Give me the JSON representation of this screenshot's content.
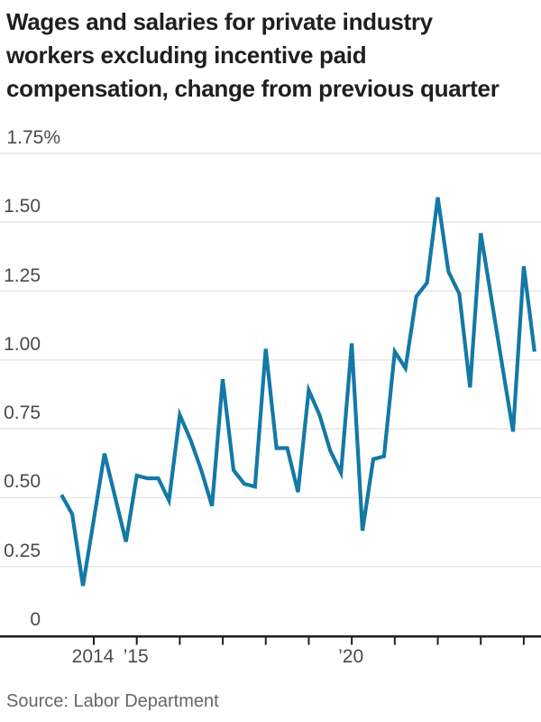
{
  "title_lines": [
    "Wages and salaries for private industry",
    "workers excluding incentive paid",
    "compensation, change from previous quarter"
  ],
  "source": "Source: Labor Department",
  "chart_data": {
    "type": "line",
    "title": "Wages and salaries for private industry workers excluding incentive paid compensation, change from previous quarter",
    "ylabel": "percent change from previous quarter",
    "ylim": [
      0,
      1.75
    ],
    "grid": "horizontal",
    "legend_position": "none",
    "line_color": "#1379A6",
    "axis_color": "#1f1f1f",
    "gridline_color": "#e4e4e4",
    "frequency": "quarterly",
    "start_quarter": "2013 Q2",
    "end_quarter": "2024 Q2",
    "values": [
      0.51,
      0.44,
      0.18,
      0.42,
      0.66,
      0.5,
      0.34,
      0.58,
      0.57,
      0.57,
      0.49,
      0.8,
      0.71,
      0.6,
      0.47,
      0.93,
      0.6,
      0.55,
      0.54,
      1.04,
      0.68,
      0.68,
      0.52,
      0.89,
      0.8,
      0.67,
      0.59,
      1.06,
      0.38,
      0.64,
      0.65,
      1.03,
      0.97,
      1.23,
      1.28,
      1.59,
      1.32,
      1.24,
      0.9,
      1.46,
      1.22,
      0.98,
      0.74,
      1.34,
      1.03
    ],
    "y_ticks": [
      {
        "label": "1.75%",
        "value": 1.75
      },
      {
        "label": "1.50",
        "value": 1.5
      },
      {
        "label": "1.25",
        "value": 1.25
      },
      {
        "label": "1.00",
        "value": 1.0
      },
      {
        "label": "0.75",
        "value": 0.75
      },
      {
        "label": "0.50",
        "value": 0.5
      },
      {
        "label": "0.25",
        "value": 0.25
      },
      {
        "label": "0",
        "value": 0
      }
    ],
    "x_ticks": [
      {
        "year": 2014,
        "label": "2014"
      },
      {
        "year": 2015,
        "label": "’15"
      },
      {
        "year": 2016,
        "label": ""
      },
      {
        "year": 2017,
        "label": ""
      },
      {
        "year": 2018,
        "label": ""
      },
      {
        "year": 2019,
        "label": ""
      },
      {
        "year": 2020,
        "label": "’20"
      },
      {
        "year": 2021,
        "label": ""
      },
      {
        "year": 2022,
        "label": ""
      },
      {
        "year": 2023,
        "label": ""
      },
      {
        "year": 2024,
        "label": ""
      }
    ]
  }
}
